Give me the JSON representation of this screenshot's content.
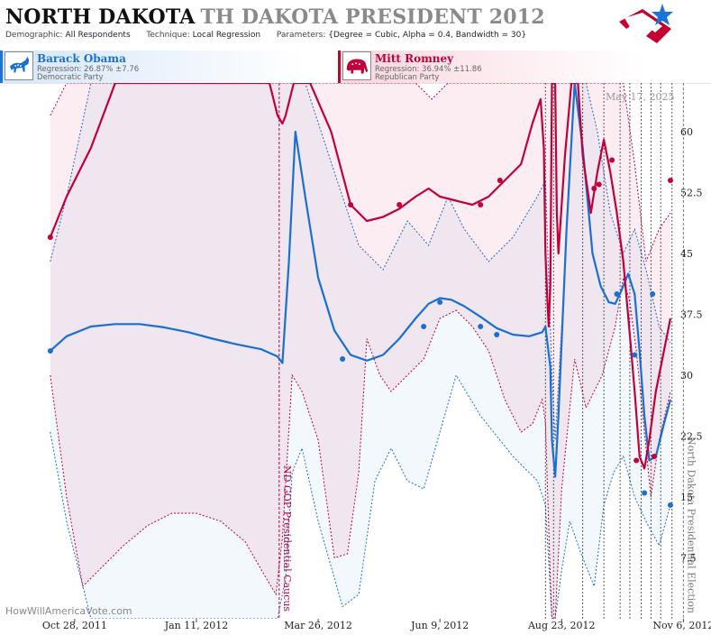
{
  "header": {
    "state": "NORTH DAKOTA",
    "election": "TH DAKOTA PRESIDENT 2012",
    "demographic_label": "Demographic:",
    "demographic": "All Respondents",
    "technique_label": "Technique:",
    "technique": "Local Regression",
    "parameters_label": "Parameters:",
    "parameters": "{Degree = Cubic, Alpha = 0.4, Bandwidth = 30}"
  },
  "candidates": {
    "dem": {
      "name": "Barack Obama",
      "regression": "Regression: 26.87% ±7.76",
      "party": "Democratic Party",
      "color": "#1a6fd0"
    },
    "rep": {
      "name": "Mitt Romney",
      "regression": "Regression: 36.94% ±11.86",
      "party": "Republican Party",
      "color": "#c0003a"
    }
  },
  "date_stamp": "May 17, 2025",
  "watermark": "HowWillAmericaVote.com",
  "chart_data": {
    "type": "line",
    "x_tick_labels": [
      "Oct 28, 2011",
      "Jan 11, 2012",
      "Mar 26, 2012",
      "Jun 9, 2012",
      "Aug 23, 2012",
      "Nov 6, 2012"
    ],
    "x_tick_days": [
      0,
      75,
      150,
      225,
      300,
      375
    ],
    "y_ticks": [
      7.5,
      15,
      22.5,
      30,
      37.5,
      45,
      52.5,
      60
    ],
    "y_tick_labels": [
      "7.5",
      "15",
      "22.5",
      "30",
      "37.5",
      "45",
      "52.5",
      "60"
    ],
    "ylim": [
      0,
      66
    ],
    "xlim_days": [
      -46,
      392
    ],
    "events": [
      {
        "label": "ND GOP Presidential Caucus",
        "day": 126,
        "color": "#c0003a"
      },
      {
        "label": "North Dakota Presidential Election",
        "day": 375,
        "color": "#777777"
      }
    ],
    "poll_day_markers": [
      290,
      295,
      313,
      326,
      336,
      342,
      349,
      355,
      361,
      368
    ],
    "series": [
      {
        "name": "Barack Obama",
        "color": "#1a6fd0",
        "trend": {
          "x": [
            -15,
            -5,
            10,
            25,
            40,
            55,
            70,
            85,
            100,
            115,
            125,
            128,
            132,
            136,
            142,
            150,
            160,
            170,
            180,
            190,
            200,
            210,
            218,
            225,
            232,
            240,
            250,
            260,
            270,
            280,
            288,
            290,
            293,
            294,
            296,
            298,
            303,
            308,
            313,
            319,
            324,
            329,
            333,
            337,
            341,
            345,
            348,
            351,
            354,
            358,
            363,
            367
          ],
          "y": [
            33,
            34.8,
            36,
            36.3,
            36.3,
            35.9,
            35.3,
            34.5,
            33.8,
            33.2,
            32.3,
            31.5,
            44,
            60,
            52,
            42,
            35.5,
            32.5,
            31.8,
            32.5,
            34.5,
            37,
            38.8,
            39.5,
            39.3,
            38.5,
            37.2,
            35.8,
            35,
            34.8,
            35.3,
            36,
            31,
            22,
            17.5,
            25,
            48,
            66,
            58,
            45,
            41,
            39,
            38.8,
            40.5,
            42.5,
            40,
            33,
            25,
            19.5,
            20,
            24,
            27
          ]
        },
        "upper_band": {
          "x": [
            -15,
            -5,
            10,
            30,
            55,
            80,
            105,
            125,
            136,
            142,
            160,
            175,
            190,
            205,
            218,
            230,
            240,
            255,
            270,
            285,
            290,
            294,
            296,
            300,
            308,
            315,
            322,
            330,
            338,
            345,
            352,
            360,
            367
          ],
          "y": [
            44,
            52,
            66,
            66,
            66,
            66,
            66,
            66,
            66,
            66,
            55,
            46,
            43,
            49,
            46,
            52,
            48,
            44,
            47,
            52,
            54,
            30,
            22,
            36,
            66,
            66,
            60,
            50,
            45,
            48,
            43,
            36,
            34
          ]
        },
        "lower_band": {
          "x": [
            -15,
            -5,
            10,
            30,
            55,
            80,
            105,
            125,
            130,
            134,
            140,
            150,
            165,
            175,
            185,
            195,
            205,
            215,
            225,
            235,
            250,
            270,
            285,
            290,
            294,
            296,
            300,
            305,
            312,
            320,
            326,
            332,
            338,
            345,
            352,
            360,
            367
          ],
          "y": [
            23,
            12,
            0,
            0,
            0,
            0,
            0,
            0,
            5,
            18,
            21,
            12,
            1.5,
            3,
            17,
            21,
            17,
            16,
            23,
            30,
            25,
            20,
            17,
            14,
            0,
            0,
            6,
            12,
            8,
            4,
            14,
            18,
            20,
            15,
            12,
            9,
            14
          ]
        },
        "polls": {
          "x": [
            -15,
            165,
            215,
            225,
            250,
            260,
            334,
            345,
            351,
            356,
            367
          ],
          "y": [
            33,
            32,
            36,
            39,
            36,
            35,
            40,
            32.5,
            15.5,
            40,
            14
          ]
        }
      },
      {
        "name": "Mitt Romney",
        "color": "#c0003a",
        "trend": {
          "x": [
            -15,
            -5,
            10,
            25,
            40,
            55,
            70,
            85,
            100,
            112,
            120,
            125,
            128,
            130,
            135,
            145,
            158,
            170,
            180,
            190,
            200,
            210,
            218,
            225,
            235,
            245,
            255,
            265,
            275,
            282,
            287,
            289,
            290,
            291,
            292,
            293,
            294,
            296,
            297,
            298,
            302,
            306,
            310,
            313,
            318,
            322,
            326,
            330,
            334,
            338,
            342,
            345,
            348,
            351,
            354,
            358,
            363,
            367
          ],
          "y": [
            47,
            52,
            58,
            66,
            66,
            66,
            66,
            66,
            66,
            66,
            66,
            62,
            61,
            62,
            66,
            66,
            60,
            51,
            49,
            49.5,
            50.5,
            52,
            53,
            52,
            51.5,
            51,
            52,
            54,
            56,
            61,
            64,
            58,
            45,
            40,
            36,
            41,
            66,
            66,
            50,
            45,
            57,
            66,
            66,
            57,
            50,
            55,
            59,
            55,
            50,
            44,
            35,
            28,
            20,
            18.5,
            22,
            28,
            33,
            37
          ]
        },
        "upper_band": {
          "x": [
            -15,
            -5,
            10,
            125,
            150,
            170,
            180,
            195,
            210,
            220,
            230,
            240,
            250,
            260,
            270,
            280,
            290,
            294,
            296,
            300,
            330,
            338,
            345,
            352,
            360,
            367
          ],
          "y": [
            62,
            66,
            66,
            66,
            66,
            66,
            66,
            66,
            66,
            64,
            66,
            66,
            66,
            66,
            66,
            66,
            66,
            66,
            66,
            66,
            66,
            66,
            56,
            44,
            48,
            50
          ]
        },
        "lower_band": {
          "x": [
            -15,
            -5,
            5,
            15,
            30,
            45,
            60,
            75,
            90,
            105,
            118,
            124,
            128,
            134,
            140,
            150,
            160,
            168,
            175,
            180,
            188,
            195,
            205,
            215,
            225,
            235,
            245,
            255,
            265,
            275,
            282,
            288,
            290,
            293,
            294,
            296,
            300,
            308,
            315,
            325,
            333,
            338,
            342,
            346,
            350,
            355,
            360,
            367
          ],
          "y": [
            30,
            15,
            4,
            6,
            9,
            11.5,
            13,
            13,
            12,
            9.5,
            5,
            3,
            10,
            30,
            28,
            22,
            7.5,
            8,
            18,
            34.5,
            30,
            28,
            30,
            32,
            37,
            38,
            36,
            33,
            27,
            23,
            24,
            27,
            24,
            5,
            0,
            0,
            16,
            32,
            26,
            30,
            36,
            42,
            39,
            33,
            25,
            15,
            22,
            28
          ]
        },
        "polls": {
          "x": [
            -15,
            170,
            200,
            250,
            262,
            320,
            323,
            331,
            346,
            357,
            367
          ],
          "y": [
            47,
            51,
            51,
            51,
            54,
            53,
            53.5,
            56.5,
            19.5,
            20,
            54
          ]
        }
      }
    ]
  }
}
